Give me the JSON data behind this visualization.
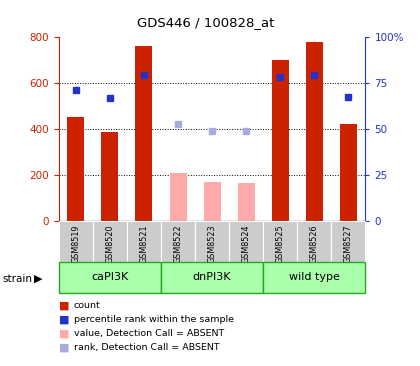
{
  "title": "GDS446 / 100828_at",
  "samples": [
    "GSM8519",
    "GSM8520",
    "GSM8521",
    "GSM8522",
    "GSM8523",
    "GSM8524",
    "GSM8525",
    "GSM8526",
    "GSM8527"
  ],
  "count_values": [
    450,
    385,
    760,
    null,
    null,
    null,
    700,
    775,
    420
  ],
  "count_absent": [
    null,
    null,
    null,
    210,
    170,
    165,
    null,
    null,
    null
  ],
  "rank_values": [
    570,
    535,
    635,
    null,
    null,
    null,
    625,
    635,
    540
  ],
  "rank_absent": [
    null,
    null,
    null,
    420,
    390,
    390,
    null,
    null,
    null
  ],
  "strain_groups": [
    {
      "label": "caPI3K",
      "start": 0,
      "end": 3
    },
    {
      "label": "dnPI3K",
      "start": 3,
      "end": 6
    },
    {
      "label": "wild type",
      "start": 6,
      "end": 9
    }
  ],
  "ylim_left": [
    0,
    800
  ],
  "ylim_right": [
    0,
    100
  ],
  "yticks_left": [
    0,
    200,
    400,
    600,
    800
  ],
  "yticks_right": [
    0,
    25,
    50,
    75,
    100
  ],
  "yticklabels_right": [
    "0",
    "25",
    "50",
    "75",
    "100%"
  ],
  "color_red": "#CC2200",
  "color_blue": "#2233CC",
  "color_pink": "#FFAAAA",
  "color_lavender": "#AAAADD",
  "color_strain_light": "#AAFFAA",
  "color_strain_dark": "#55CC55",
  "color_strain_darkest": "#22AA22",
  "color_sample_bg": "#CCCCCC",
  "bar_width": 0.5,
  "marker_size": 5
}
